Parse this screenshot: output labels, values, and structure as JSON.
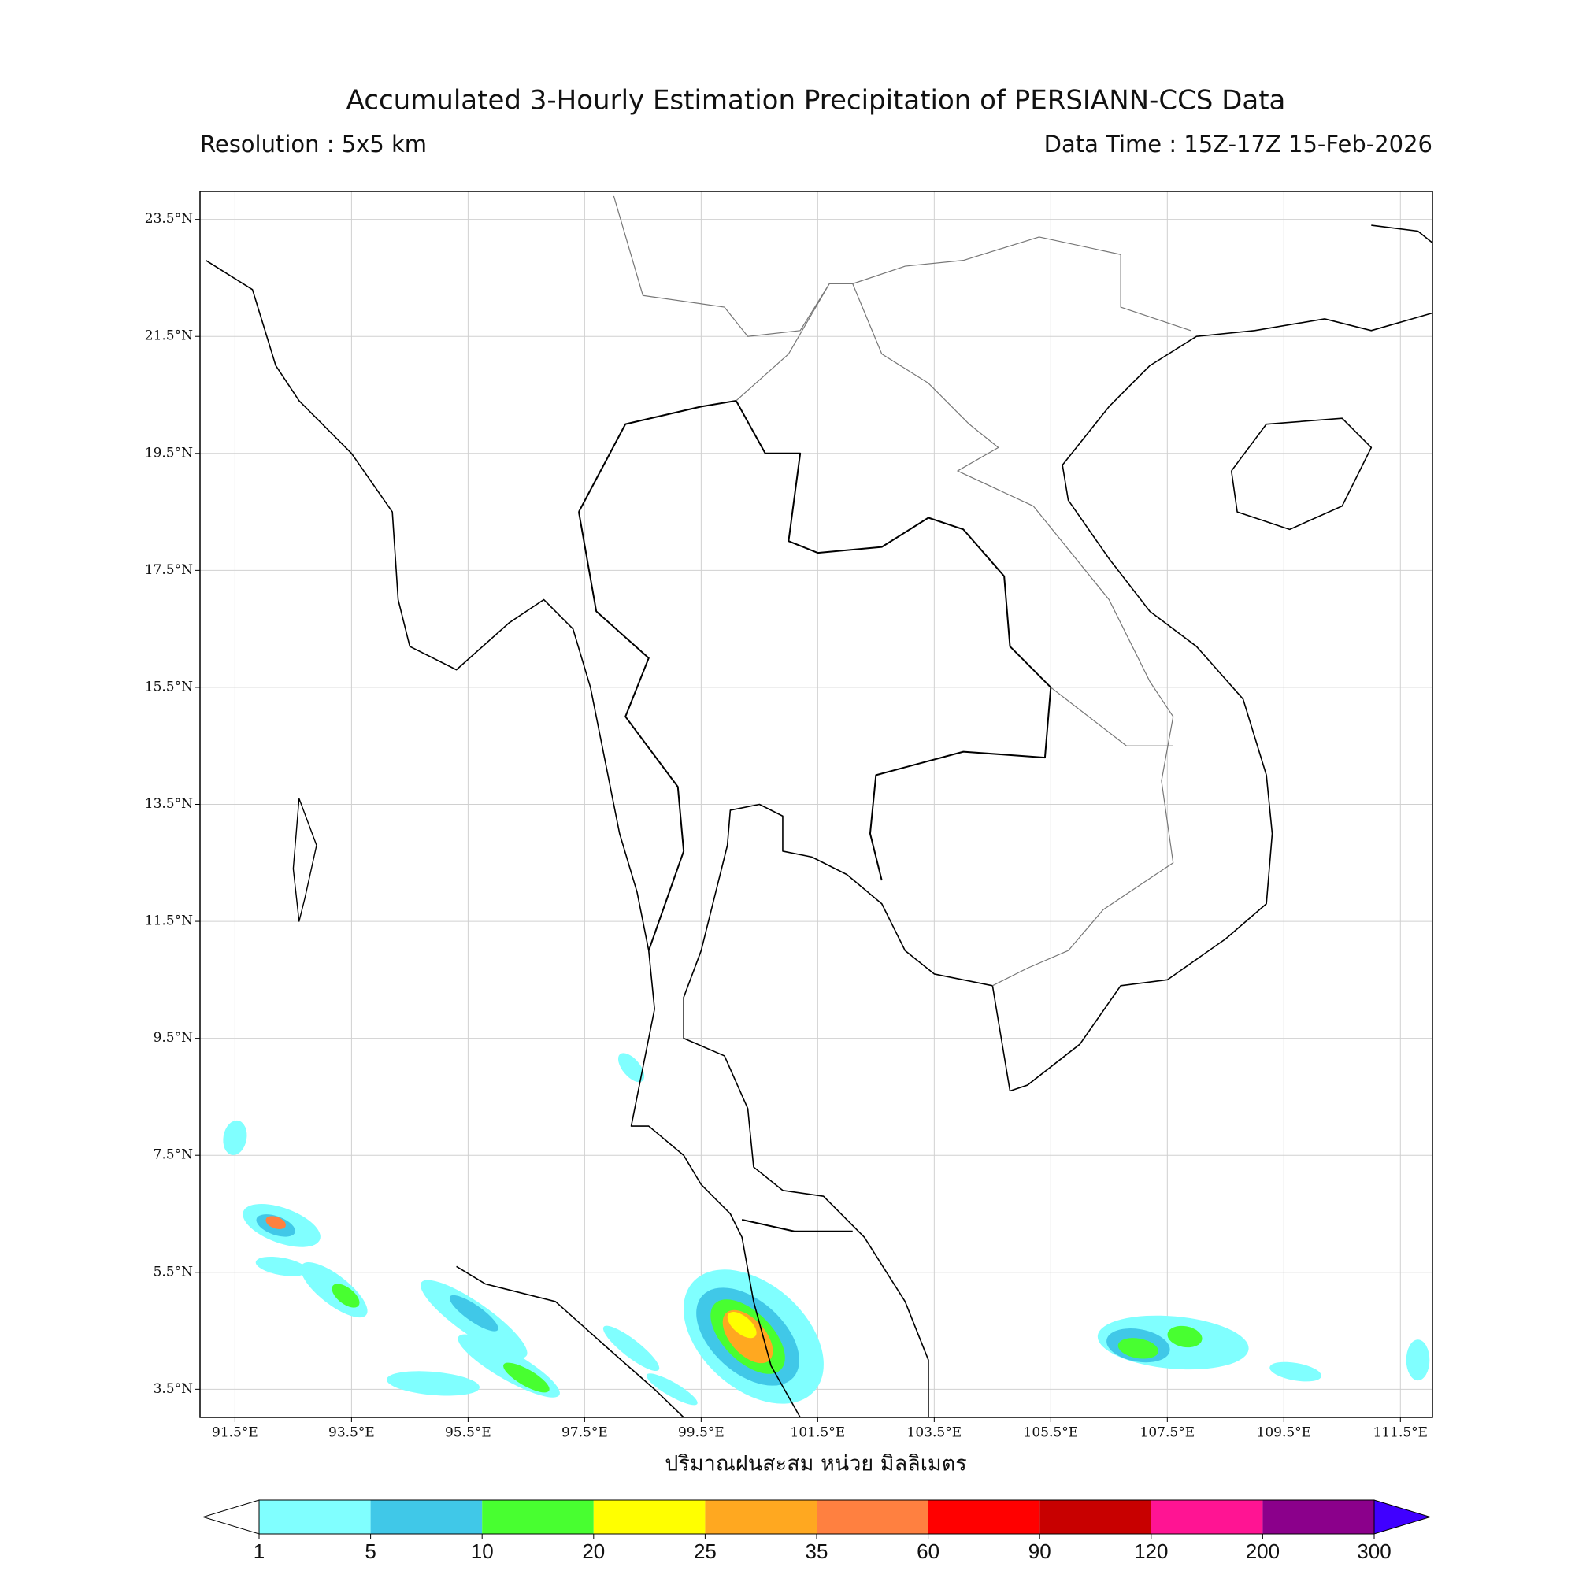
{
  "chart_data": {
    "type": "map",
    "title": "Accumulated 3-Hourly Estimation Precipitation of PERSIANN-CCS Data",
    "subtitle_left": "Resolution : 5x5 km",
    "subtitle_right": "Data Time : 15Z-17Z 15-Feb-2026",
    "xlabel": "ปริมาณฝนสะสม หน่วย มิลลิเมตร",
    "xlim": [
      90.9,
      112.05
    ],
    "ylim": [
      3.02,
      23.98
    ],
    "xticks": [
      {
        "value": 91.5,
        "label": "91.5°E"
      },
      {
        "value": 93.5,
        "label": "93.5°E"
      },
      {
        "value": 95.5,
        "label": "95.5°E"
      },
      {
        "value": 97.5,
        "label": "97.5°E"
      },
      {
        "value": 99.5,
        "label": "99.5°E"
      },
      {
        "value": 101.5,
        "label": "101.5°E"
      },
      {
        "value": 103.5,
        "label": "103.5°E"
      },
      {
        "value": 105.5,
        "label": "105.5°E"
      },
      {
        "value": 107.5,
        "label": "107.5°E"
      },
      {
        "value": 109.5,
        "label": "109.5°E"
      },
      {
        "value": 111.5,
        "label": "111.5°E"
      }
    ],
    "yticks": [
      {
        "value": 23.5,
        "label": "23.5°N"
      },
      {
        "value": 21.5,
        "label": "21.5°N"
      },
      {
        "value": 19.5,
        "label": "19.5°N"
      },
      {
        "value": 17.5,
        "label": "17.5°N"
      },
      {
        "value": 15.5,
        "label": "15.5°N"
      },
      {
        "value": 13.5,
        "label": "13.5°N"
      },
      {
        "value": 11.5,
        "label": "11.5°N"
      },
      {
        "value": 9.5,
        "label": "9.5°N"
      },
      {
        "value": 7.5,
        "label": "7.5°N"
      },
      {
        "value": 5.5,
        "label": "5.5°N"
      },
      {
        "value": 3.5,
        "label": "3.5°N"
      }
    ],
    "grid": true,
    "colorbar": {
      "levels": [
        1,
        5,
        10,
        20,
        25,
        35,
        60,
        90,
        120,
        200,
        300
      ],
      "colors": [
        "#80ffff",
        "#40c8e8",
        "#48ff30",
        "#ffff00",
        "#ffa820",
        "#ff8040",
        "#ff0000",
        "#c80000",
        "#ff1493",
        "#8b008b"
      ],
      "under_color": "#ffffff",
      "over_color": "#4000ff"
    }
  }
}
